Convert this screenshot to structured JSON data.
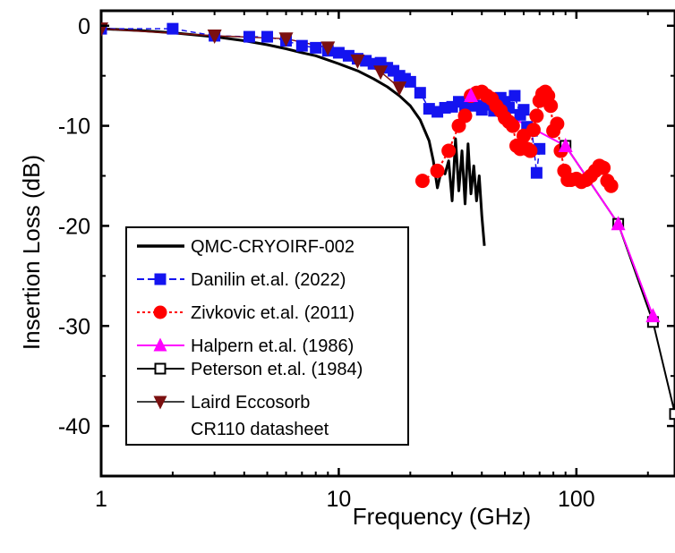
{
  "chart_data": {
    "type": "scatter",
    "xlabel": "Frequency (GHz)",
    "ylabel": "Insertion Loss (dB)",
    "xscale": "log",
    "xlim": [
      1,
      260
    ],
    "ylim": [
      -45,
      1.5
    ],
    "xticks": [
      1,
      10,
      100
    ],
    "xtick_labels": [
      "1",
      "10",
      "100"
    ],
    "yticks": [
      0,
      -10,
      -20,
      -30,
      -40
    ],
    "ytick_labels": [
      "0",
      "-10",
      "-20",
      "-30",
      "-40"
    ],
    "grid": false,
    "legend_position": "bottom-left",
    "series": [
      {
        "name": "QMC-CRYOIRF-002",
        "style": "line",
        "color": "#000000",
        "x": [
          1,
          1.5,
          2,
          3,
          4,
          5,
          6,
          7,
          8,
          10,
          12,
          14,
          16,
          18,
          20,
          22,
          24,
          25,
          26,
          27,
          28,
          29,
          30,
          31,
          32,
          33,
          34,
          35,
          36,
          37,
          38,
          39,
          40,
          41
        ],
        "y": [
          -0.3,
          -0.5,
          -0.7,
          -1.1,
          -1.5,
          -1.9,
          -2.3,
          -2.7,
          -3.0,
          -3.8,
          -4.5,
          -5.3,
          -6.1,
          -7.0,
          -8.0,
          -9.4,
          -11.5,
          -13.5,
          -16.2,
          -14.5,
          -14.8,
          -13.5,
          -17.5,
          -11.3,
          -16.5,
          -12.5,
          -17.8,
          -11.8,
          -16.8,
          -14.0,
          -17.5,
          -15.0,
          -19.0,
          -22.0
        ]
      },
      {
        "name": "Danilin et.al. (2022)",
        "marker": "square",
        "color": "#1414f0",
        "x": [
          1,
          2,
          3,
          4.2,
          5,
          6,
          7,
          8,
          9,
          10,
          11,
          12,
          13,
          14,
          15,
          16,
          17,
          18,
          19,
          20,
          22,
          24,
          26,
          28,
          30,
          32,
          34,
          36,
          38,
          40,
          42,
          45,
          48,
          50,
          52,
          55,
          58,
          60,
          62,
          65,
          68,
          70
        ],
        "y": [
          -0.3,
          -0.3,
          -1.0,
          -1.1,
          -1.1,
          -1.5,
          -2.0,
          -2.2,
          -2.5,
          -2.7,
          -3.0,
          -3.3,
          -3.5,
          -3.8,
          -3.7,
          -4.2,
          -4.5,
          -5.0,
          -5.3,
          -5.6,
          -6.7,
          -8.3,
          -8.6,
          -8.2,
          -8.1,
          -7.6,
          -8.0,
          -7.5,
          -8.0,
          -8.4,
          -7.9,
          -8.5,
          -7.2,
          -7.6,
          -8.2,
          -7.0,
          -8.9,
          -8.4,
          -10.1,
          -10.5,
          -14.7,
          -12.3
        ]
      },
      {
        "name": "Zivkovic et.al. (2011)",
        "marker": "circle",
        "color": "#ff0000",
        "x": [
          22.5,
          26,
          29,
          32,
          34,
          36,
          38,
          40,
          42,
          44,
          46,
          48,
          50,
          52,
          54,
          56,
          58,
          60,
          62,
          64,
          66,
          68,
          70,
          72,
          74,
          76,
          78,
          80,
          83,
          86,
          89,
          92,
          95,
          100,
          105,
          110,
          115,
          120,
          125,
          130,
          135,
          140
        ],
        "y": [
          -15.5,
          -14.5,
          -12.5,
          -10.0,
          -9.0,
          -7.0,
          -6.7,
          -6.6,
          -7.0,
          -7.3,
          -8.0,
          -8.5,
          -9.2,
          -9.6,
          -10.0,
          -12.0,
          -12.3,
          -11.0,
          -12.3,
          -12.5,
          -10.4,
          -9.0,
          -7.5,
          -6.8,
          -6.6,
          -7.0,
          -8.0,
          -10.5,
          -9.8,
          -12.5,
          -14.5,
          -15.4,
          -15.4,
          -15.3,
          -15.6,
          -15.4,
          -15.0,
          -14.5,
          -14.0,
          -14.2,
          -15.5,
          -16.0
        ]
      },
      {
        "name": "Halpern et.al. (1986)",
        "marker": "triangle",
        "color": "#ff00ff",
        "x": [
          36,
          90,
          150,
          210
        ],
        "y": [
          -7.0,
          -12.0,
          -19.8,
          -29.0
        ]
      },
      {
        "name": "Peterson et.al. (1984)",
        "marker": "open-square",
        "color": "#000000",
        "x": [
          90,
          150,
          210,
          260
        ],
        "y": [
          -12.0,
          -19.8,
          -29.6,
          -38.8
        ]
      },
      {
        "name": "Laird Eccosorb",
        "name_line2": "CR110 datasheet",
        "marker": "triangle-down",
        "color": "#7b1010",
        "x": [
          1,
          3,
          6,
          9,
          12,
          15,
          18
        ],
        "y": [
          -0.3,
          -1.0,
          -1.3,
          -2.2,
          -3.5,
          -4.6,
          -6.2
        ]
      }
    ]
  }
}
